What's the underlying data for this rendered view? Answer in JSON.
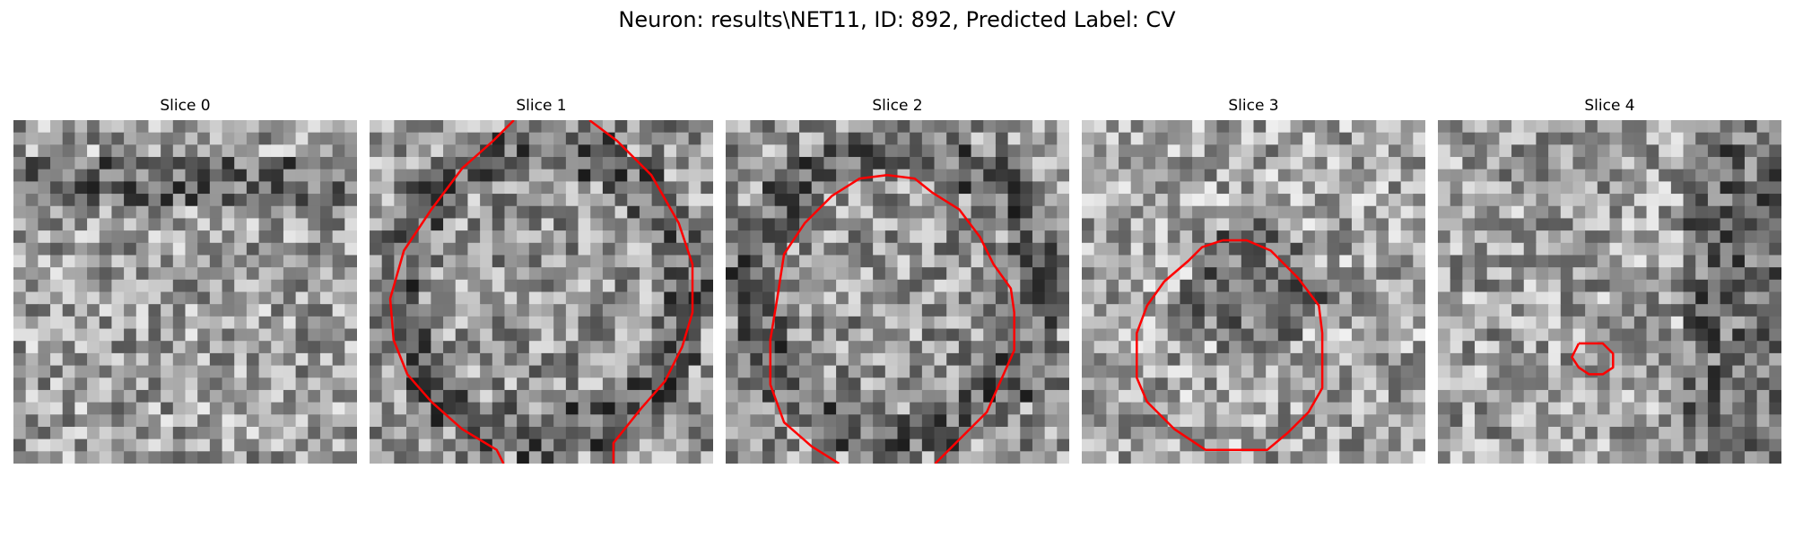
{
  "figure": {
    "title": "Neuron: results\\NET11, ID: 892, Predicted Label: CV"
  },
  "contour_color": "#ff0000",
  "slices": [
    {
      "title": "Slice 0",
      "seed": 11,
      "dark_band": "top",
      "contour": []
    },
    {
      "title": "Slice 1",
      "seed": 23,
      "dark_band": "ring",
      "contour": [
        [
          0.42,
          0.0
        ],
        [
          0.36,
          0.06
        ],
        [
          0.27,
          0.14
        ],
        [
          0.18,
          0.26
        ],
        [
          0.1,
          0.38
        ],
        [
          0.06,
          0.52
        ],
        [
          0.07,
          0.64
        ],
        [
          0.11,
          0.74
        ],
        [
          0.18,
          0.82
        ],
        [
          0.27,
          0.9
        ],
        [
          0.37,
          0.96
        ],
        [
          0.39,
          1.0
        ]
      ],
      "contour2": [
        [
          0.64,
          0.0
        ],
        [
          0.72,
          0.06
        ],
        [
          0.82,
          0.16
        ],
        [
          0.9,
          0.3
        ],
        [
          0.94,
          0.42
        ],
        [
          0.94,
          0.56
        ],
        [
          0.91,
          0.66
        ],
        [
          0.86,
          0.76
        ],
        [
          0.79,
          0.84
        ],
        [
          0.71,
          0.94
        ],
        [
          0.71,
          1.0
        ]
      ]
    },
    {
      "title": "Slice 2",
      "seed": 37,
      "dark_band": "ring",
      "contour": [
        [
          0.33,
          1.0
        ],
        [
          0.25,
          0.95
        ],
        [
          0.17,
          0.88
        ],
        [
          0.13,
          0.77
        ],
        [
          0.13,
          0.64
        ],
        [
          0.15,
          0.52
        ],
        [
          0.17,
          0.39
        ],
        [
          0.23,
          0.3
        ],
        [
          0.31,
          0.22
        ],
        [
          0.39,
          0.17
        ],
        [
          0.47,
          0.16
        ],
        [
          0.55,
          0.17
        ],
        [
          0.6,
          0.21
        ],
        [
          0.68,
          0.26
        ],
        [
          0.74,
          0.34
        ],
        [
          0.78,
          0.42
        ],
        [
          0.83,
          0.49
        ],
        [
          0.84,
          0.56
        ],
        [
          0.84,
          0.67
        ],
        [
          0.8,
          0.76
        ],
        [
          0.76,
          0.85
        ],
        [
          0.68,
          0.93
        ],
        [
          0.61,
          1.0
        ]
      ]
    },
    {
      "title": "Slice 3",
      "seed": 51,
      "dark_band": "center",
      "contour": [
        [
          0.41,
          0.35
        ],
        [
          0.48,
          0.35
        ],
        [
          0.55,
          0.38
        ],
        [
          0.63,
          0.46
        ],
        [
          0.69,
          0.54
        ],
        [
          0.7,
          0.62
        ],
        [
          0.7,
          0.78
        ],
        [
          0.66,
          0.85
        ],
        [
          0.6,
          0.91
        ],
        [
          0.54,
          0.96
        ],
        [
          0.36,
          0.96
        ],
        [
          0.27,
          0.9
        ],
        [
          0.19,
          0.82
        ],
        [
          0.16,
          0.75
        ],
        [
          0.16,
          0.62
        ],
        [
          0.19,
          0.54
        ],
        [
          0.24,
          0.47
        ],
        [
          0.31,
          0.41
        ],
        [
          0.35,
          0.37
        ],
        [
          0.41,
          0.35
        ]
      ]
    },
    {
      "title": "Slice 4",
      "seed": 73,
      "dark_band": "right",
      "contour": [
        [
          0.41,
          0.65
        ],
        [
          0.48,
          0.65
        ],
        [
          0.51,
          0.68
        ],
        [
          0.51,
          0.72
        ],
        [
          0.48,
          0.74
        ],
        [
          0.44,
          0.74
        ],
        [
          0.41,
          0.72
        ],
        [
          0.39,
          0.69
        ],
        [
          0.41,
          0.65
        ]
      ]
    }
  ]
}
